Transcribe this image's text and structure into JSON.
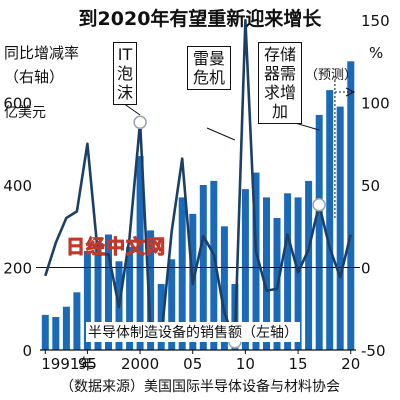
{
  "title": "到2020年有望重新迎来增长",
  "source": "（数据来源）美国国际半导体设备与材料协会",
  "watermark": "日经中文网",
  "annotations": [
    {
      "name": "annotation-it-bubble",
      "text": "IT泡沫"
    },
    {
      "name": "annotation-lehman",
      "text": "雷曼危机"
    },
    {
      "name": "annotation-storage",
      "text": "存储器需求增加"
    },
    {
      "name": "annotation-forecast",
      "text": "（预测）"
    }
  ],
  "right_axis_label": "同比增减率（右轴）",
  "left_axis_label": "亿美元",
  "right_axis_unit": "%",
  "bar_label": "半导体制造设备的销售额（左轴）",
  "chart_data": {
    "type": "bar+line",
    "x": [
      1991,
      1992,
      1993,
      1994,
      1995,
      1996,
      1997,
      1998,
      1999,
      2000,
      2001,
      2002,
      2003,
      2004,
      2005,
      2006,
      2007,
      2008,
      2009,
      2010,
      2011,
      2012,
      2013,
      2014,
      2015,
      2016,
      2017,
      2018,
      2019,
      2020
    ],
    "x_tick_labels": [
      "1991年",
      "95",
      "2000",
      "05",
      "10",
      "15",
      "20"
    ],
    "bar_series": {
      "name": "半导体制造设备的销售额",
      "axis": "left",
      "color": "#1a6ab8",
      "values": [
        85,
        80,
        105,
        140,
        240,
        260,
        280,
        215,
        250,
        470,
        290,
        160,
        220,
        370,
        330,
        400,
        410,
        300,
        160,
        390,
        430,
        370,
        320,
        380,
        370,
        410,
        570,
        630,
        590,
        700
      ]
    },
    "line_series": {
      "name": "同比增减率",
      "axis": "right",
      "color": "#1c3f66",
      "values": [
        -5,
        15,
        30,
        34,
        75,
        8,
        8,
        -24,
        18,
        88,
        -39,
        -44,
        22,
        66,
        -10,
        19,
        8,
        -27,
        -45,
        150,
        10,
        -14,
        -13,
        20,
        -3,
        11,
        38,
        12,
        -6,
        20
      ]
    },
    "left_axis": {
      "range": [
        0,
        800
      ],
      "ticks": [
        0,
        200,
        400,
        600
      ]
    },
    "right_axis": {
      "range": [
        -50,
        150
      ],
      "ticks": [
        -50,
        0,
        50,
        100,
        150
      ]
    },
    "reference_line": 0,
    "forecast_from": 2019
  }
}
